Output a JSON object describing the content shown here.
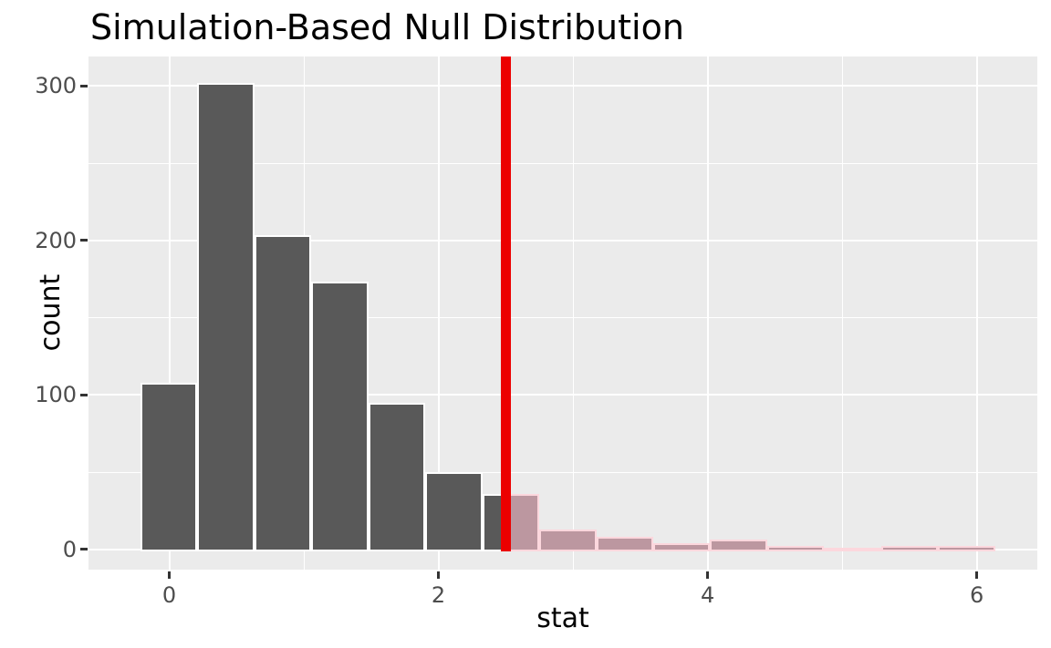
{
  "chart_data": {
    "type": "bar",
    "subtype": "histogram",
    "title": "Simulation-Based Null Distribution",
    "xlabel": "stat",
    "ylabel": "count",
    "x_ticks": [
      0,
      2,
      4,
      6
    ],
    "y_ticks": [
      0,
      100,
      200,
      300
    ],
    "x_minor_gridlines": [
      1,
      3,
      5
    ],
    "y_minor_gridlines": [
      50,
      150,
      250
    ],
    "xlim": [
      -0.6,
      6.45
    ],
    "ylim": [
      -13,
      319
    ],
    "grid": "on",
    "legend": "none",
    "bins": {
      "start": -0.2136,
      "width": 0.4233,
      "counts": [
        107,
        301,
        202,
        172,
        94,
        49,
        35,
        12,
        7,
        3,
        5,
        1,
        0,
        1,
        1
      ]
    },
    "observed_stat": 2.5,
    "shade_direction": "right",
    "colors": {
      "panel_background": "#EBEBEB",
      "gridline": "#FFFFFF",
      "bar_fill": "#595959",
      "bar_outline": "#FFFFFF",
      "shaded_bar_fill": "#BC97A0",
      "shaded_bar_outline": "#FCD7DD",
      "observed_line": "#EC0000",
      "tick_label": "#4D4D4D",
      "axis_text": "#000000",
      "tick_mark": "#333333"
    }
  }
}
